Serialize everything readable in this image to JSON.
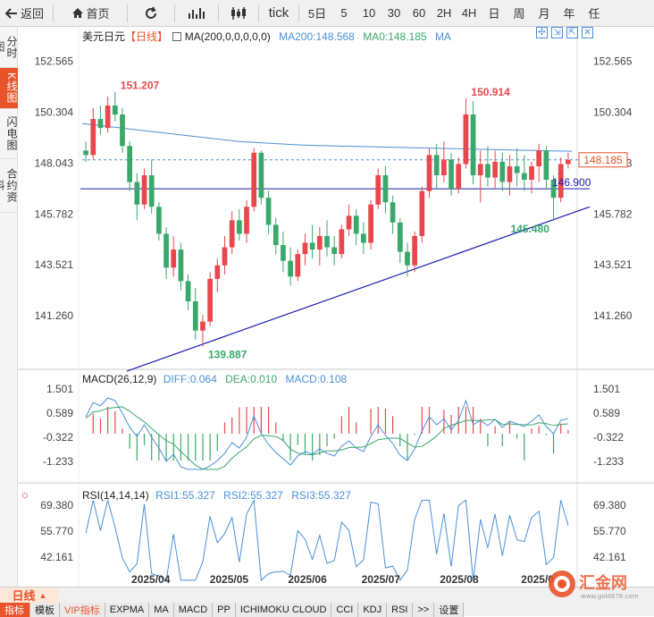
{
  "toolbar": {
    "back": "返回",
    "home": "首页",
    "tick": "tick",
    "periods": [
      "5日",
      "5",
      "10",
      "30",
      "60",
      "2H",
      "4H",
      "日",
      "周",
      "月",
      "年",
      "任"
    ]
  },
  "sidebar": [
    "分时图",
    "K线图",
    "闪电图",
    "合约资料"
  ],
  "main": {
    "symbol": "美元日元",
    "period": "【日线】",
    "ma_label": "MA(200,0,0,0,0,0)",
    "ma200": "MA200:148.568",
    "ma0": "MA0:148.185",
    "ma": "MA",
    "y_ticks": [
      "152.565",
      "150.304",
      "148.043",
      "145.782",
      "143.521",
      "141.260"
    ],
    "price_tag": "148.185",
    "line_tag": "146.900",
    "annotations": [
      "151.207",
      "150.914",
      "145.480",
      "139.887"
    ],
    "right_partial": "148.043"
  },
  "macd": {
    "title": "MACD(26,12,9)",
    "diff": "DIFF:0.064",
    "dea": "DEA:0.010",
    "macd": "MACD:0.108",
    "y_ticks": [
      "1.501",
      "0.589",
      "-0.322",
      "-1.233"
    ]
  },
  "rsi": {
    "title": "RSI(14,14,14)",
    "rsi1": "RSI1:55.327",
    "rsi2": "RSI2:55.327",
    "rsi3": "RSI3:55.327",
    "y_ticks": [
      "69.380",
      "55.770",
      "42.161"
    ]
  },
  "x_ticks": [
    "2025/04",
    "2025/05",
    "2025/06",
    "2025/07",
    "2025/08",
    "2025/0"
  ],
  "bottom": {
    "period": "日线",
    "tabs": [
      "指标",
      "模板",
      "VIP指标",
      "EXPMA",
      "MA",
      "MACD",
      "PP",
      "ICHIMOKU CLOUD",
      "CCI",
      "KDJ",
      "RSI",
      ">>",
      "设置"
    ]
  },
  "watermark": {
    "name": "汇金网",
    "url": "www.gold678.com"
  },
  "colors": {
    "up": "#e8474d",
    "down": "#3aa86b",
    "ma": "#4a90d9",
    "accent": "#e8532a",
    "trend": "#1c1cb0"
  },
  "chart_data": {
    "type": "candlestick",
    "ylim": [
      139.0,
      153.3
    ],
    "candles": [
      [
        148.6,
        149.0,
        148.1,
        148.4
      ],
      [
        148.4,
        150.5,
        148.2,
        150.0
      ],
      [
        150.0,
        150.6,
        149.3,
        149.6
      ],
      [
        149.6,
        151.0,
        149.4,
        150.6
      ],
      [
        150.6,
        151.2,
        149.9,
        150.2
      ],
      [
        150.2,
        150.5,
        148.5,
        148.8
      ],
      [
        148.8,
        149.0,
        146.8,
        147.2
      ],
      [
        147.2,
        147.6,
        145.5,
        146.2
      ],
      [
        146.2,
        147.8,
        146.0,
        147.5
      ],
      [
        147.5,
        148.2,
        145.8,
        146.1
      ],
      [
        146.1,
        146.3,
        144.6,
        144.9
      ],
      [
        144.9,
        145.2,
        142.9,
        143.4
      ],
      [
        143.4,
        144.8,
        143.0,
        144.2
      ],
      [
        144.2,
        144.5,
        142.4,
        142.8
      ],
      [
        142.8,
        143.1,
        141.5,
        141.9
      ],
      [
        141.9,
        142.5,
        140.2,
        140.6
      ],
      [
        140.6,
        141.3,
        139.89,
        141.0
      ],
      [
        141.0,
        143.2,
        140.8,
        142.9
      ],
      [
        142.9,
        143.8,
        142.3,
        143.5
      ],
      [
        143.5,
        144.8,
        143.1,
        144.3
      ],
      [
        144.3,
        145.9,
        144.0,
        145.5
      ],
      [
        145.5,
        146.0,
        144.6,
        144.9
      ],
      [
        144.9,
        146.4,
        144.5,
        146.1
      ],
      [
        146.1,
        148.7,
        145.9,
        148.5
      ],
      [
        148.5,
        148.6,
        146.2,
        146.5
      ],
      [
        146.5,
        146.8,
        144.9,
        145.3
      ],
      [
        145.3,
        145.6,
        144.0,
        144.4
      ],
      [
        144.4,
        145.0,
        143.2,
        143.7
      ],
      [
        143.7,
        144.3,
        142.6,
        143.0
      ],
      [
        143.0,
        144.2,
        142.8,
        144.0
      ],
      [
        144.0,
        144.9,
        143.5,
        144.5
      ],
      [
        144.5,
        145.3,
        143.8,
        144.2
      ],
      [
        144.2,
        145.2,
        143.5,
        144.8
      ],
      [
        144.8,
        145.5,
        143.9,
        144.3
      ],
      [
        144.3,
        144.8,
        143.5,
        144.0
      ],
      [
        144.0,
        145.3,
        143.8,
        145.1
      ],
      [
        145.1,
        146.2,
        144.8,
        145.7
      ],
      [
        145.7,
        146.0,
        144.4,
        144.9
      ],
      [
        144.9,
        145.4,
        144.0,
        144.5
      ],
      [
        144.5,
        146.4,
        144.2,
        146.2
      ],
      [
        146.2,
        147.8,
        146.0,
        147.5
      ],
      [
        147.5,
        147.9,
        145.8,
        146.3
      ],
      [
        146.3,
        146.6,
        144.9,
        145.4
      ],
      [
        145.4,
        145.6,
        143.6,
        144.1
      ],
      [
        144.1,
        144.5,
        143.0,
        143.5
      ],
      [
        143.5,
        145.0,
        143.2,
        144.8
      ],
      [
        144.8,
        147.0,
        144.5,
        146.8
      ],
      [
        146.8,
        148.7,
        146.5,
        148.4
      ],
      [
        148.4,
        148.9,
        146.9,
        147.5
      ],
      [
        147.5,
        149.0,
        147.2,
        148.2
      ],
      [
        148.2,
        148.5,
        146.6,
        146.9
      ],
      [
        146.9,
        148.3,
        146.7,
        148.0
      ],
      [
        148.0,
        150.914,
        147.8,
        150.2
      ],
      [
        150.2,
        150.8,
        147.1,
        147.5
      ],
      [
        147.5,
        148.6,
        146.3,
        148.0
      ],
      [
        148.0,
        148.8,
        147.0,
        147.4
      ],
      [
        147.4,
        148.6,
        146.9,
        148.1
      ],
      [
        148.1,
        148.5,
        146.8,
        147.2
      ],
      [
        147.2,
        148.4,
        146.6,
        147.9
      ],
      [
        147.9,
        148.7,
        147.0,
        147.6
      ],
      [
        147.6,
        148.4,
        146.8,
        147.3
      ],
      [
        147.3,
        148.1,
        146.7,
        147.9
      ],
      [
        147.9,
        148.9,
        147.2,
        148.6
      ],
      [
        148.6,
        148.8,
        146.9,
        147.3
      ],
      [
        147.3,
        147.5,
        145.48,
        146.5
      ],
      [
        146.5,
        148.3,
        146.3,
        148.0
      ],
      [
        148.0,
        148.5,
        147.8,
        148.185
      ]
    ],
    "ma200": [
      149.8,
      149.7,
      149.6,
      149.5,
      149.4,
      149.3,
      149.2,
      149.1,
      149.0,
      148.95,
      148.9,
      148.85,
      148.82,
      148.8,
      148.78,
      148.76,
      148.74,
      148.72,
      148.7,
      148.68,
      148.66,
      148.64,
      148.62,
      148.6,
      148.58,
      148.568
    ],
    "trendline": [
      [
        0,
        138.8
      ],
      [
        66,
        146.1
      ]
    ],
    "hline": 146.9
  }
}
